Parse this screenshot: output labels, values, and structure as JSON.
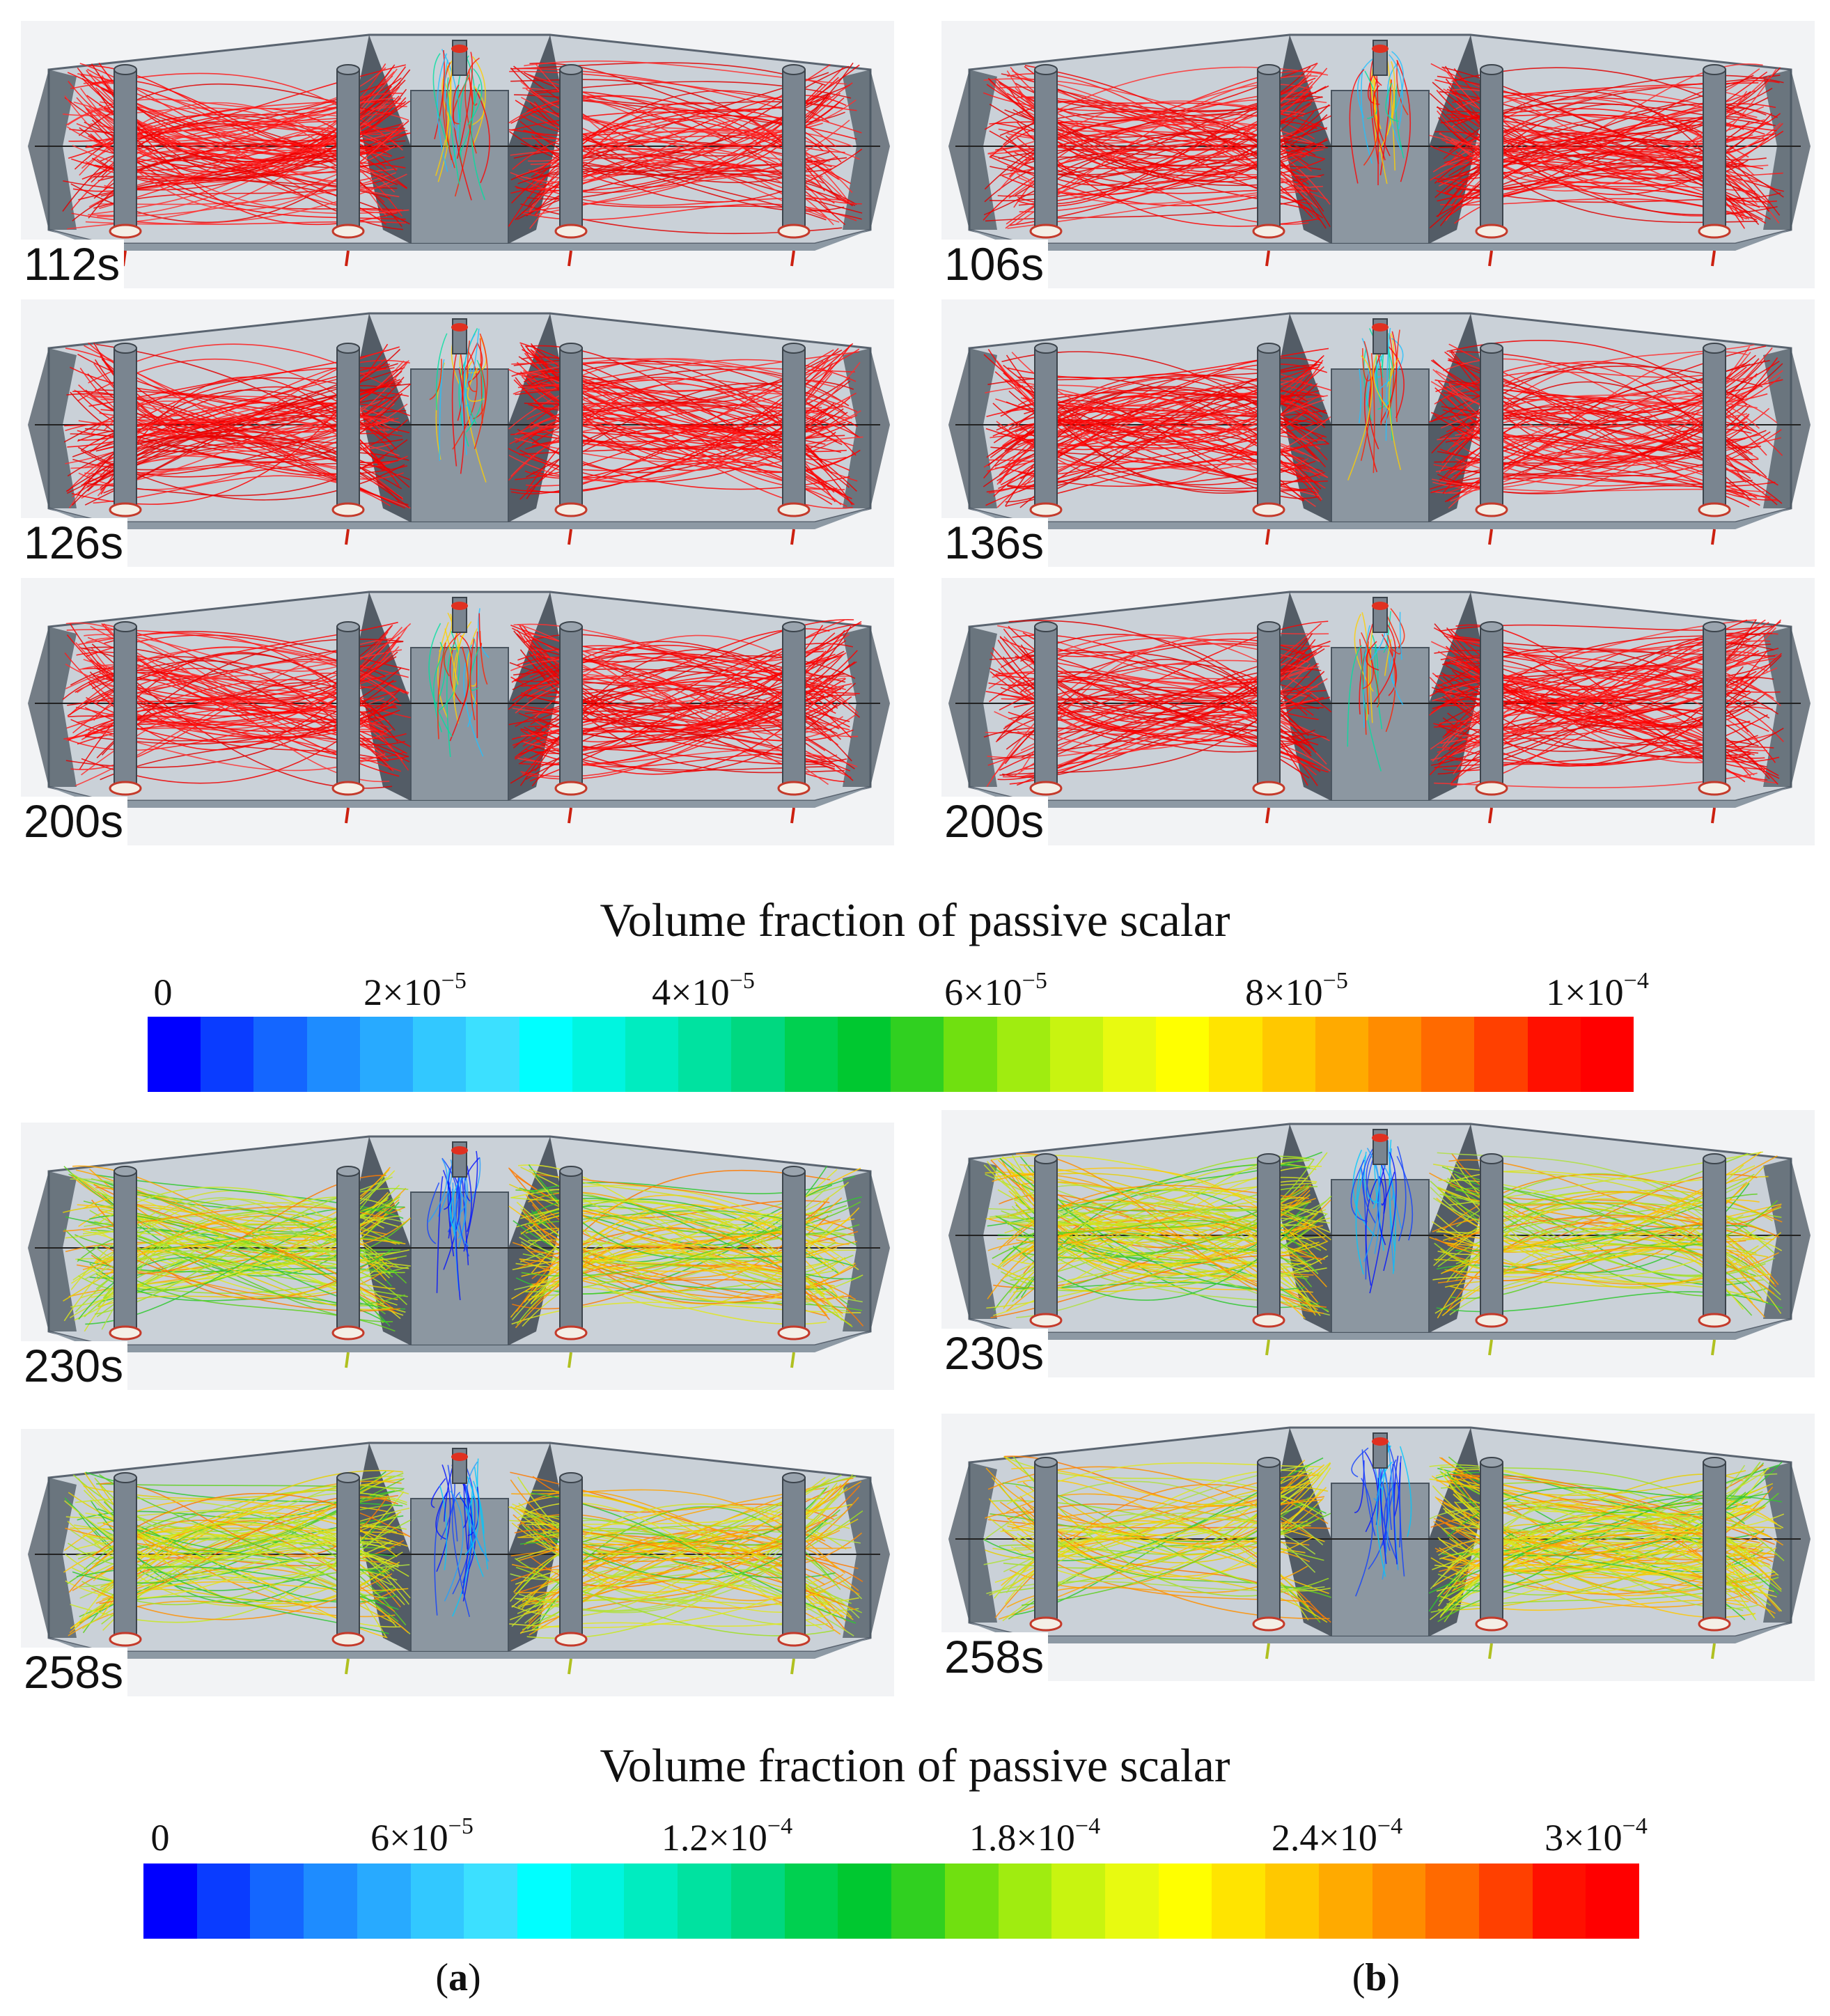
{
  "panels": [
    {
      "id": "a1",
      "time": "112s",
      "flow": "red"
    },
    {
      "id": "b1",
      "time": "106s",
      "flow": "red"
    },
    {
      "id": "a2",
      "time": "126s",
      "flow": "red"
    },
    {
      "id": "b2",
      "time": "136s",
      "flow": "red"
    },
    {
      "id": "a3",
      "time": "200s",
      "flow": "red"
    },
    {
      "id": "b3",
      "time": "200s",
      "flow": "red"
    },
    {
      "id": "a4",
      "time": "230s",
      "flow": "mixed"
    },
    {
      "id": "b4",
      "time": "230s",
      "flow": "mixed"
    },
    {
      "id": "a5",
      "time": "258s",
      "flow": "mixed"
    },
    {
      "id": "b5",
      "time": "258s",
      "flow": "mixed"
    }
  ],
  "colorbars": [
    {
      "title": "Volume fraction of passive scalar",
      "ticks": [
        {
          "coef": "0",
          "exp": ""
        },
        {
          "coef": "2×10",
          "exp": "−5"
        },
        {
          "coef": "4×10",
          "exp": "−5"
        },
        {
          "coef": "6×10",
          "exp": "−5"
        },
        {
          "coef": "8×10",
          "exp": "−5"
        },
        {
          "coef": "1×10",
          "exp": "−4"
        }
      ]
    },
    {
      "title": "Volume fraction of passive scalar",
      "ticks": [
        {
          "coef": "0",
          "exp": ""
        },
        {
          "coef": "6×10",
          "exp": "−5"
        },
        {
          "coef": "1.2×10",
          "exp": "−4"
        },
        {
          "coef": "1.8×10",
          "exp": "−4"
        },
        {
          "coef": "2.4×10",
          "exp": "−4"
        },
        {
          "coef": "3×10",
          "exp": "−4"
        }
      ]
    }
  ],
  "colormap": [
    "#0000ff",
    "#0a3cff",
    "#1466ff",
    "#1e8cff",
    "#28aaff",
    "#32c8ff",
    "#3ce0ff",
    "#00ffff",
    "#00f5e0",
    "#00ecc0",
    "#00e2a0",
    "#00d880",
    "#00d050",
    "#00c830",
    "#30d020",
    "#70e010",
    "#a0ec10",
    "#c8f410",
    "#e8fa10",
    "#ffff00",
    "#ffe400",
    "#ffc800",
    "#ffaa00",
    "#ff8c00",
    "#ff6a00",
    "#ff4000",
    "#ff1000",
    "#ff0000"
  ],
  "captions": {
    "a": "a",
    "b": "b"
  }
}
